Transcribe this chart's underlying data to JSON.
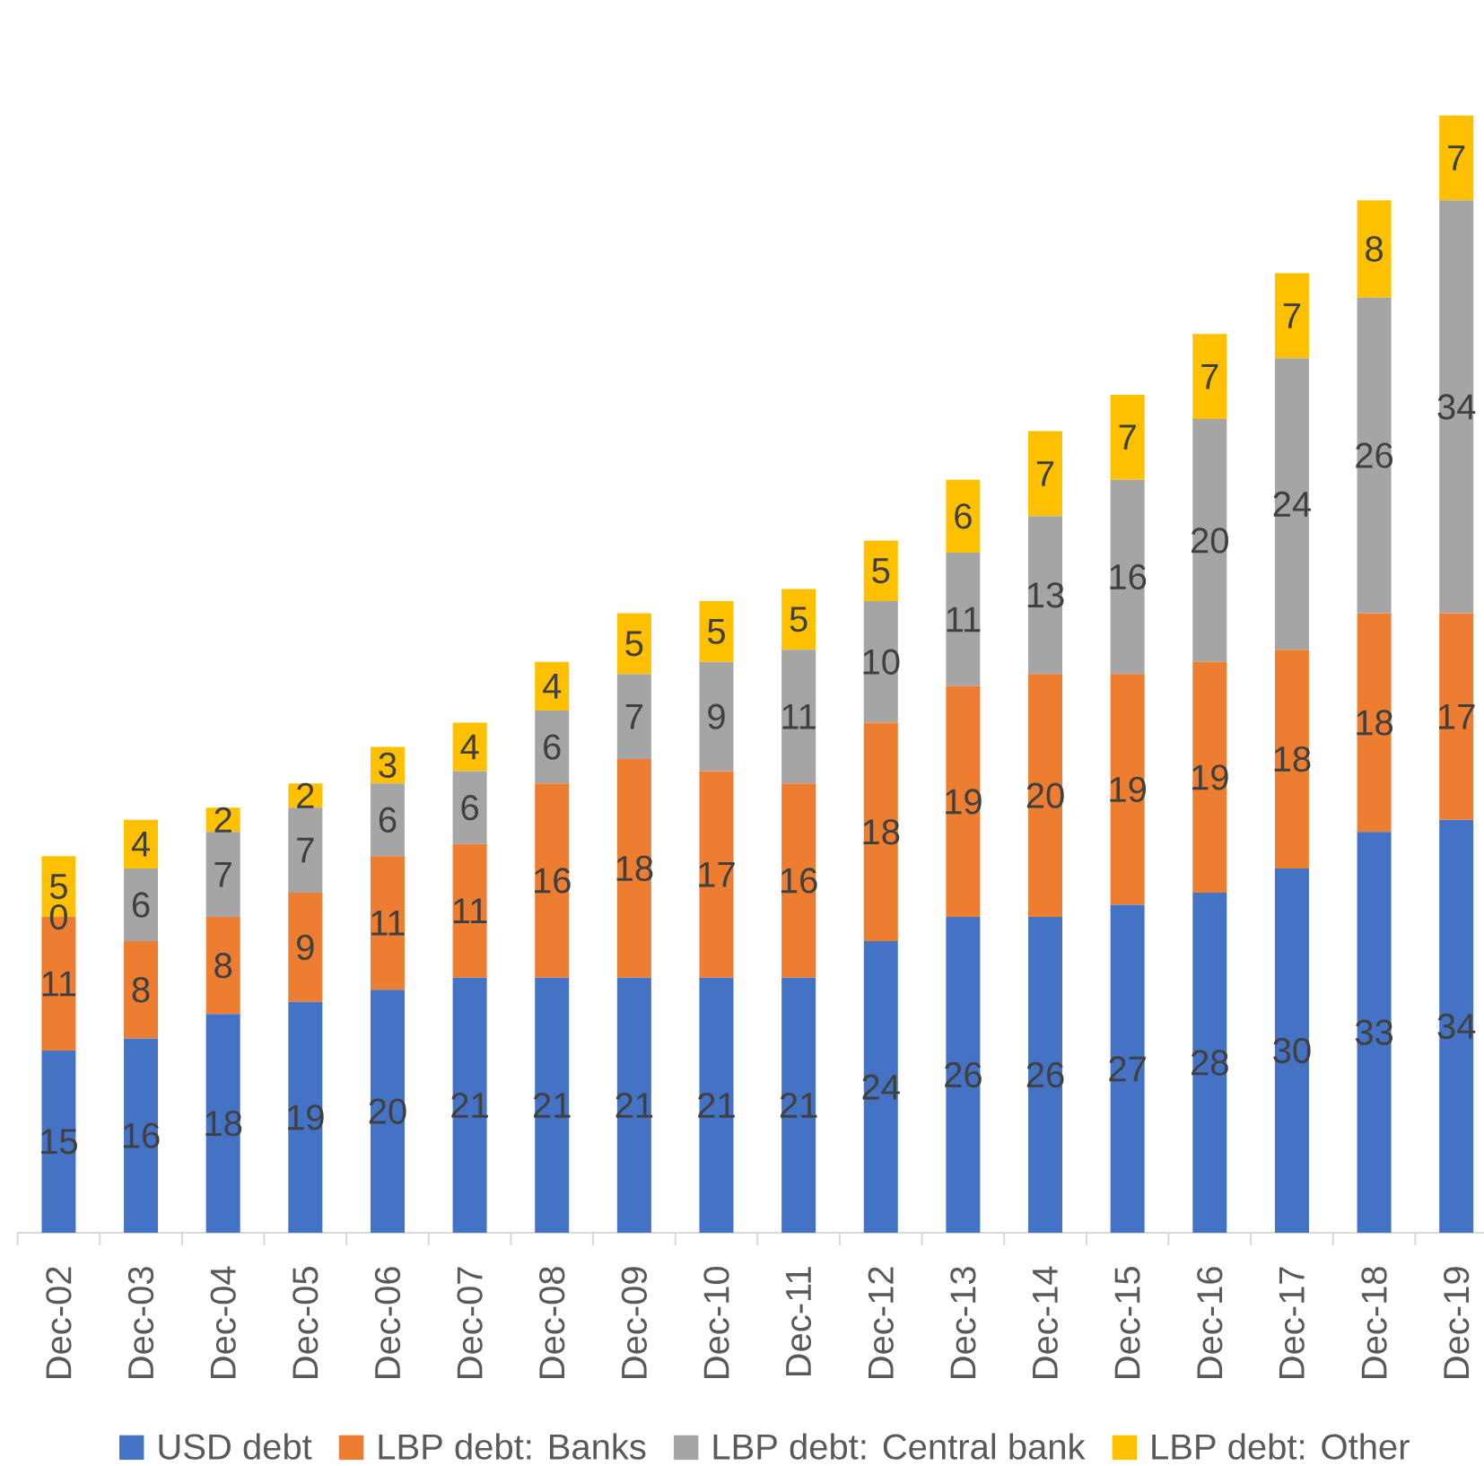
{
  "chart_data": {
    "type": "bar",
    "stacked": true,
    "data_labels": true,
    "legend": "bottom",
    "tick_labels": "x",
    "categories": [
      "Dec-02",
      "Dec-03",
      "Dec-04",
      "Dec-05",
      "Dec-06",
      "Dec-07",
      "Dec-08",
      "Dec-09",
      "Dec-10",
      "Dec-11",
      "Dec-12",
      "Dec-13",
      "Dec-14",
      "Dec-15",
      "Dec-16",
      "Dec-17",
      "Dec-18",
      "Dec-19"
    ],
    "series": [
      {
        "name": "USD debt",
        "color": "#4472c4",
        "values": [
          15,
          16,
          18,
          19,
          20,
          21,
          21,
          21,
          21,
          21,
          24,
          26,
          26,
          27,
          28,
          30,
          33,
          34
        ]
      },
      {
        "name": "LBP debt: Banks",
        "color": "#ed7d31",
        "values": [
          11,
          8,
          8,
          9,
          11,
          11,
          16,
          18,
          17,
          16,
          18,
          19,
          20,
          19,
          19,
          18,
          18,
          17
        ]
      },
      {
        "name": "LBP debt: Central bank",
        "color": "#a5a5a5",
        "values": [
          0,
          6,
          7,
          7,
          6,
          6,
          6,
          7,
          9,
          11,
          10,
          11,
          13,
          16,
          20,
          24,
          26,
          34
        ]
      },
      {
        "name": "LBP debt: Other",
        "color": "#ffc000",
        "values": [
          5,
          4,
          2,
          2,
          3,
          4,
          4,
          5,
          5,
          5,
          5,
          6,
          7,
          7,
          7,
          7,
          8,
          7
        ]
      }
    ]
  }
}
